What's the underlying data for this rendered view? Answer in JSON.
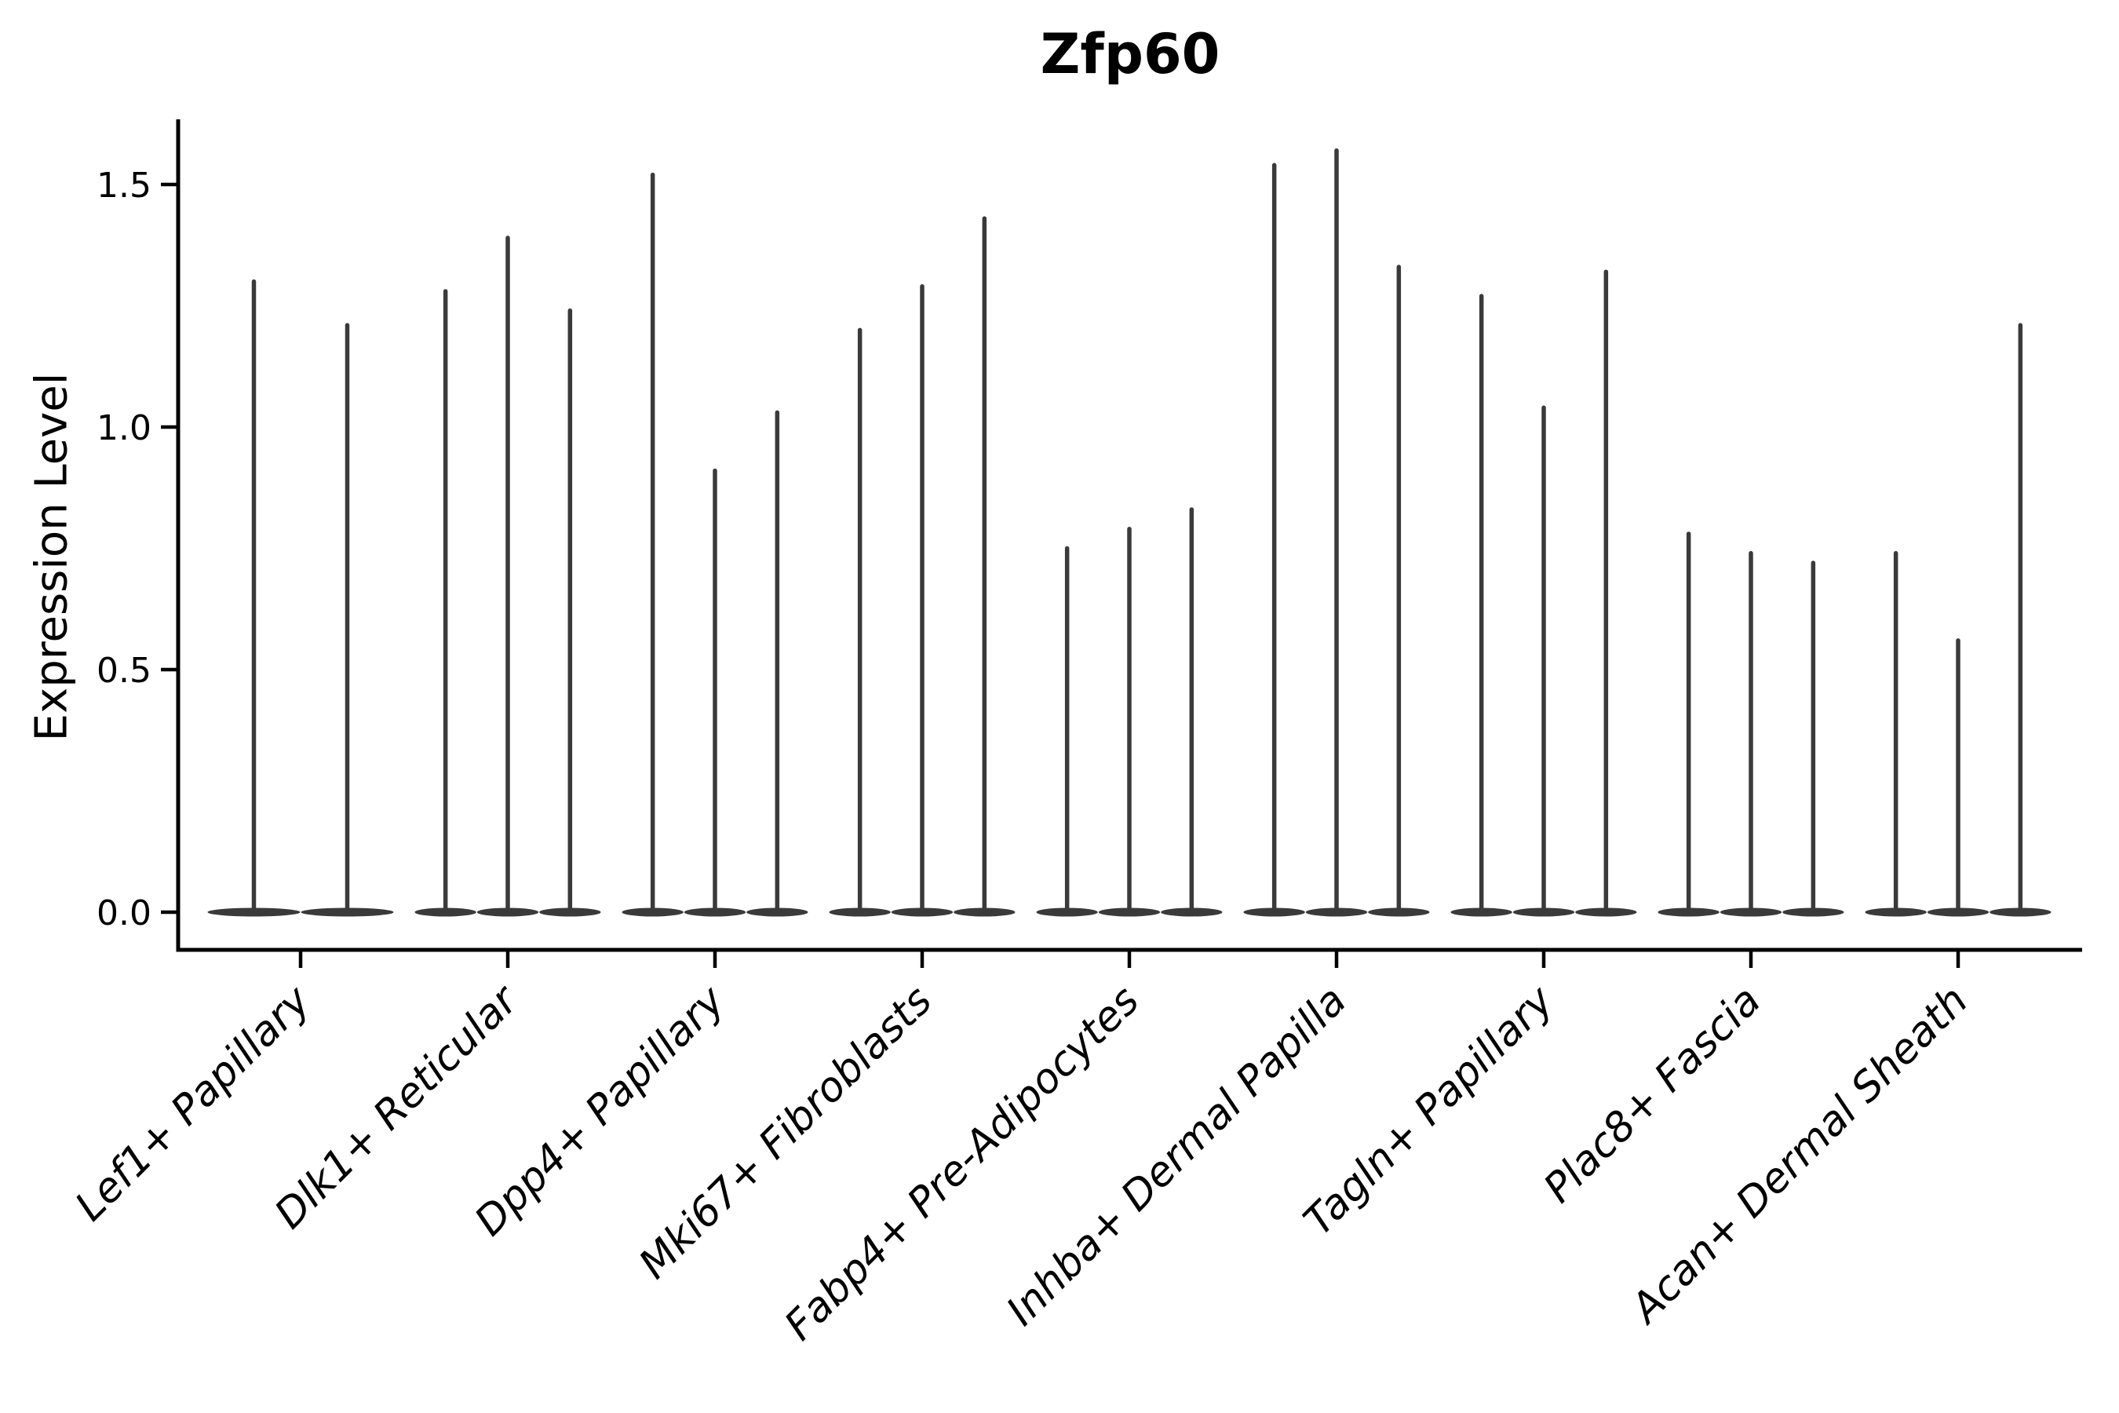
{
  "chart_data": {
    "type": "violin",
    "title": "Zfp60",
    "xlabel": "",
    "ylabel": "Expression Level",
    "ylim": [
      0,
      1.63
    ],
    "grid": false,
    "legend": null,
    "ytick_labels": [
      "0.0",
      "0.5",
      "1.0",
      "1.5"
    ],
    "violin_color": "#3a3a3a",
    "axis_color": "#000000",
    "categories": [
      "Lef1+ Papillary",
      "Dlk1+ Reticular",
      "Dpp4+ Papillary",
      "Mki67+ Fibroblasts",
      "Fabp4+ Pre-Adipocytes",
      "Inhba+ Dermal Papilla",
      "Tagln+ Papillary",
      "Plac8+ Fascia",
      "Acan+ Dermal Sheath"
    ],
    "groups": [
      {
        "category": "Lef1+ Papillary",
        "violin_maxima": [
          1.3,
          1.21
        ]
      },
      {
        "category": "Dlk1+ Reticular",
        "violin_maxima": [
          1.28,
          1.39,
          1.24
        ]
      },
      {
        "category": "Dpp4+ Papillary",
        "violin_maxima": [
          1.52,
          0.91,
          1.03
        ]
      },
      {
        "category": "Mki67+ Fibroblasts",
        "violin_maxima": [
          1.2,
          1.29,
          1.43
        ]
      },
      {
        "category": "Fabp4+ Pre-Adipocytes",
        "violin_maxima": [
          0.75,
          0.79,
          0.83
        ]
      },
      {
        "category": "Inhba+ Dermal Papilla",
        "violin_maxima": [
          1.54,
          1.57,
          1.33
        ]
      },
      {
        "category": "Tagln+ Papillary",
        "violin_maxima": [
          1.27,
          1.04,
          1.32
        ]
      },
      {
        "category": "Plac8+ Fascia",
        "violin_maxima": [
          0.78,
          0.74,
          0.72
        ]
      },
      {
        "category": "Acan+ Dermal Sheath",
        "violin_maxima": [
          0.74,
          0.56,
          1.21
        ]
      }
    ]
  }
}
